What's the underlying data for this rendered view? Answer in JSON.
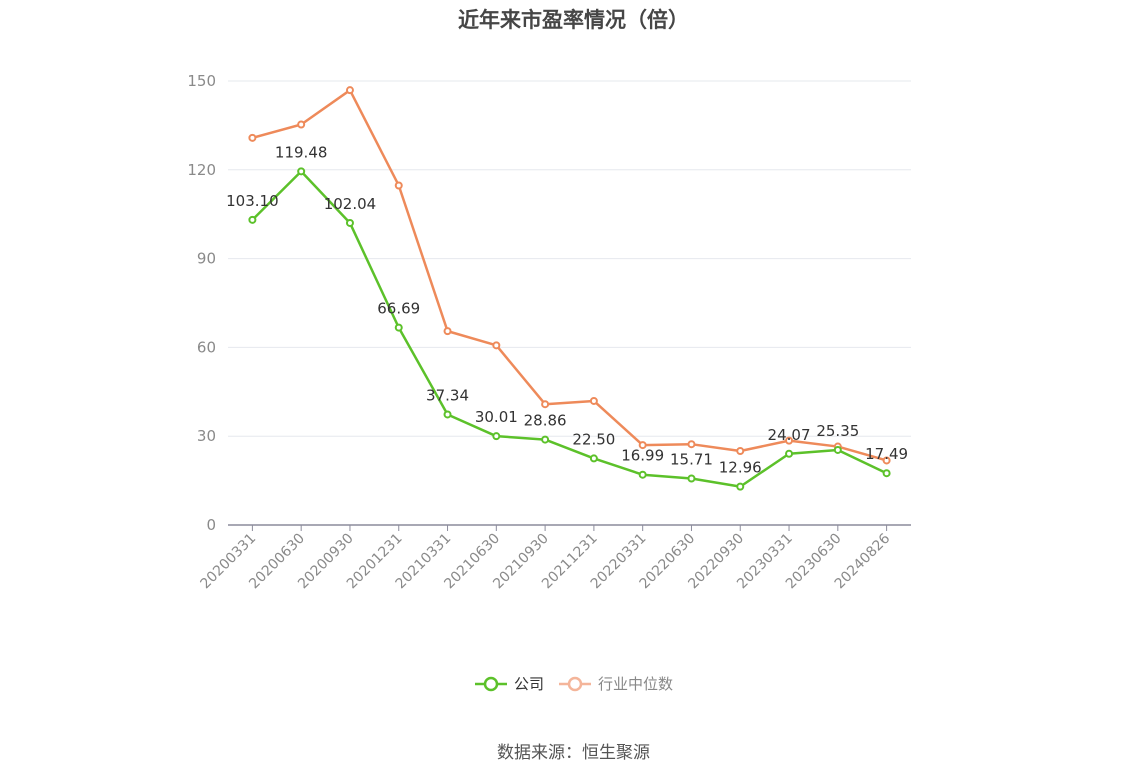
{
  "title": "近年来市盈率情况（倍）",
  "source": "数据来源：恒生聚源",
  "colors": {
    "company": "#5cc12a",
    "industry": "#ee8a5a",
    "industry_legend": "#f4b59a",
    "axis": "#8c8c9c",
    "grid": "#e6e8ee",
    "tick_text": "#8a8a8a",
    "label_text": "#333333"
  },
  "chart_data": {
    "type": "line",
    "x": [
      "20200331",
      "20200630",
      "20200930",
      "20201231",
      "20210331",
      "20210630",
      "20210930",
      "20211231",
      "20220331",
      "20220630",
      "20220930",
      "20230331",
      "20230630",
      "20240826"
    ],
    "ylim": [
      0,
      150
    ],
    "yticks": [
      0,
      30,
      60,
      90,
      120,
      150
    ],
    "grid": true,
    "legend_position": "bottom",
    "series": [
      {
        "name": "公司",
        "values": [
          103.1,
          119.48,
          102.04,
          66.69,
          37.34,
          30.01,
          28.86,
          22.5,
          16.99,
          15.71,
          12.96,
          24.07,
          25.35,
          17.49
        ],
        "labels": [
          "103.10",
          "119.48",
          "102.04",
          "66.69",
          "37.34",
          "30.01",
          "28.86",
          "22.50",
          "16.99",
          "15.71",
          "12.96",
          "24.07",
          "25.35",
          "17.49"
        ]
      },
      {
        "name": "行业中位数",
        "values": [
          130.8,
          135.3,
          146.9,
          114.7,
          65.5,
          60.7,
          40.8,
          41.9,
          27.0,
          27.3,
          25.0,
          28.5,
          26.5,
          21.8
        ]
      }
    ]
  }
}
